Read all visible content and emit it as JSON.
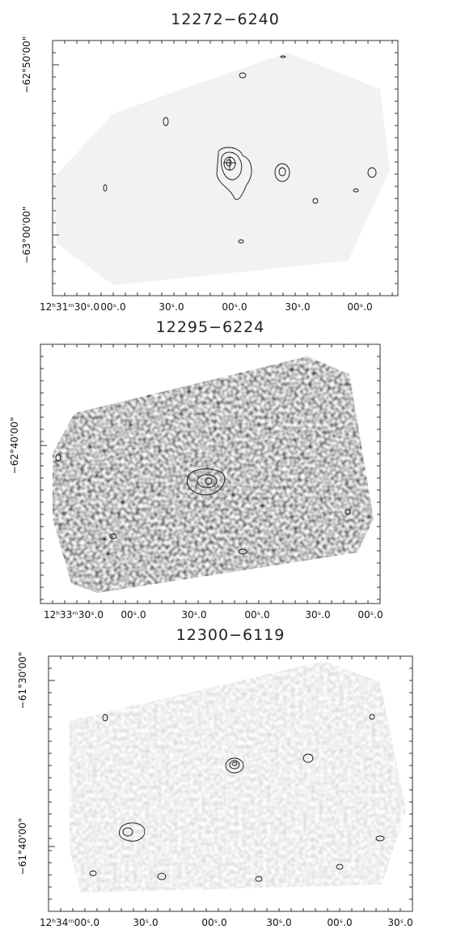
{
  "panels": [
    {
      "title": "12272−6240",
      "y_labels": [
        "−62°50'00\"",
        "−63°00'00\""
      ],
      "x_labels": [
        "12ʰ31ᵐ30ˢ.0",
        "00ˢ.0",
        "30ˢ.0",
        "00ˢ.0",
        "30ˢ.0",
        "00ˢ.0"
      ]
    },
    {
      "title": "12295−6224",
      "y_labels": [
        "−62°40'00\""
      ],
      "x_labels": [
        "12ʰ33ᵐ30ˢ.0",
        "00ˢ.0",
        "30ˢ.0",
        "00ˢ.0",
        "30ˢ.0",
        "00ˢ.0"
      ]
    },
    {
      "title": "12300−6119",
      "y_labels": [
        "−61°30'00\"",
        "−61°40'00\""
      ],
      "x_labels": [
        "12ʰ34ᵐ00ˢ.0",
        "30ˢ.0",
        "00ˢ.0",
        "30ˢ.0",
        "00ˢ.0",
        "30ˢ.0"
      ]
    }
  ]
}
